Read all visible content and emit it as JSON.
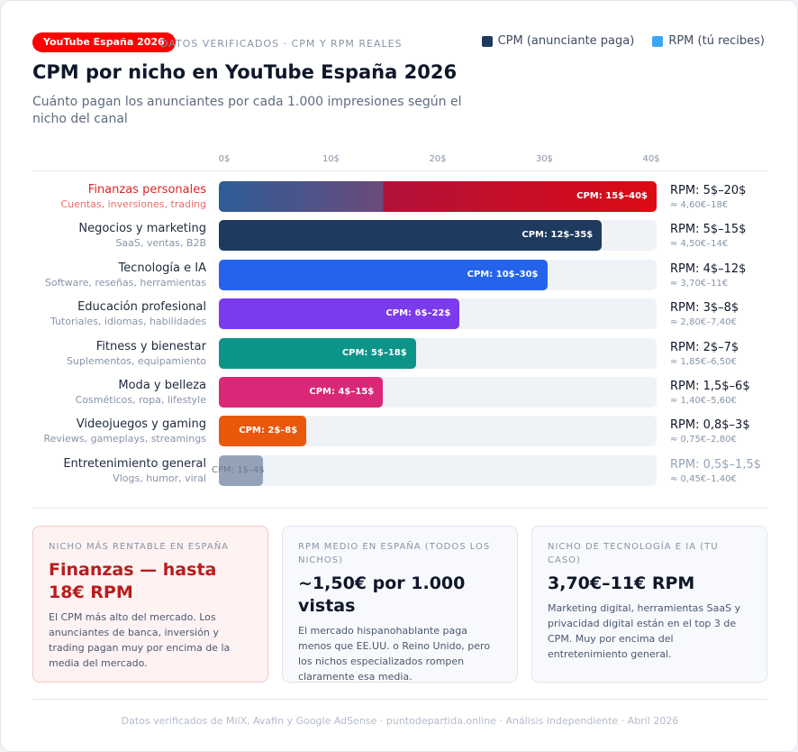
{
  "header": {
    "badge": "YouTube España 2026",
    "eyebrow": "DATOS VERIFICADOS · CPM Y RPM REALES",
    "title": "CPM por nicho en YouTube España 2026",
    "subtitle": "Cuánto pagan los anunciantes por cada 1.000 impresiones según el nicho del canal"
  },
  "legend": [
    {
      "label": "CPM (anunciante paga)",
      "color": "#1e3a5f"
    },
    {
      "label": "RPM (tú recibes)",
      "color": "#3ea6f5"
    }
  ],
  "chart_data": {
    "type": "bar",
    "orientation": "horizontal",
    "title": "CPM por nicho en YouTube España 2026",
    "xlim": [
      0,
      40
    ],
    "ticks": [
      "0$",
      "10$",
      "20$",
      "30$",
      "40$"
    ],
    "categories": [
      "Finanzas personales",
      "Negocios y marketing",
      "Tecnología e IA",
      "Educación profesional",
      "Fitness y bienestar",
      "Moda y belleza",
      "Videojuegos y gaming",
      "Entretenimiento general"
    ],
    "rows": [
      {
        "name": "Finanzas personales",
        "sub": "Cuentas, inversiones, trading",
        "cpm_min": 15,
        "cpm_max": 40,
        "cpm_label": "CPM: 15$–40$",
        "rpm_label": "RPM: 5$–20$",
        "eur_label": "≈ 4,60€–18€",
        "color": "#dc0a14",
        "highlight": true
      },
      {
        "name": "Negocios y marketing",
        "sub": "SaaS, ventas, B2B",
        "cpm_min": 12,
        "cpm_max": 35,
        "cpm_label": "CPM: 12$–35$",
        "rpm_label": "RPM: 5$–15$",
        "eur_label": "≈ 4,50€–14€",
        "color": "#1e3a5f"
      },
      {
        "name": "Tecnología e IA",
        "sub": "Software, reseñas, herramientas",
        "cpm_min": 10,
        "cpm_max": 30,
        "cpm_label": "CPM: 10$–30$",
        "rpm_label": "RPM: 4$–12$",
        "eur_label": "≈ 3,70€–11€",
        "color": "#2563eb"
      },
      {
        "name": "Educación profesional",
        "sub": "Tutoriales, idiomas, habilidades",
        "cpm_min": 6,
        "cpm_max": 22,
        "cpm_label": "CPM: 6$–22$",
        "rpm_label": "RPM: 3$–8$",
        "eur_label": "≈ 2,80€–7,40€",
        "color": "#7c3aed"
      },
      {
        "name": "Fitness y bienestar",
        "sub": "Suplementos, equipamiento",
        "cpm_min": 5,
        "cpm_max": 18,
        "cpm_label": "CPM: 5$–18$",
        "rpm_label": "RPM: 2$–7$",
        "eur_label": "≈ 1,85€–6,50€",
        "color": "#0d9488"
      },
      {
        "name": "Moda y belleza",
        "sub": "Cosméticos, ropa, lifestyle",
        "cpm_min": 4,
        "cpm_max": 15,
        "cpm_label": "CPM: 4$–15$",
        "rpm_label": "RPM: 1,5$–6$",
        "eur_label": "≈ 1,40€–5,60€",
        "color": "#db2777"
      },
      {
        "name": "Videojuegos y gaming",
        "sub": "Reviews, gameplays, streamings",
        "cpm_min": 2,
        "cpm_max": 8,
        "cpm_label": "CPM: 2$–8$",
        "rpm_label": "RPM: 0,8$–3$",
        "eur_label": "≈ 0,75€–2,80€",
        "color": "#ea580c"
      },
      {
        "name": "Entretenimiento general",
        "sub": "Vlogs, humor, viral",
        "cpm_min": 1,
        "cpm_max": 4,
        "cpm_label": "CPM: 1$–4$",
        "rpm_label": "RPM: 0,5$–1,5$",
        "eur_label": "≈ 0,45€–1,40€",
        "color": "#94a3b8",
        "muted": true
      }
    ]
  },
  "boxes": [
    {
      "label": "NICHO MÁS RENTABLE EN ESPAÑA",
      "value": "Finanzas — hasta 18€ RPM",
      "text": "El CPM más alto del mercado. Los anunciantes de banca, inversión y trading pagan muy por encima de la media del mercado."
    },
    {
      "label": "RPM MEDIO EN ESPAÑA (TODOS LOS NICHOS)",
      "value": "~1,50€ por 1.000 vistas",
      "text": "El mercado hispanohablante paga menos que EE.UU. o Reino Unido, pero los nichos especializados rompen claramente esa media."
    },
    {
      "label": "NICHO DE TECNOLOGÍA E IA (TU CASO)",
      "value": "3,70€–11€ RPM",
      "text": "Marketing digital, herramientas SaaS y privacidad digital están en el top 3 de CPM. Muy por encima del entretenimiento general."
    }
  ],
  "footer": "Datos verificados de MilX, Avafin y Google AdSense · puntodepartida.online · Análisis independiente · Abril 2026"
}
